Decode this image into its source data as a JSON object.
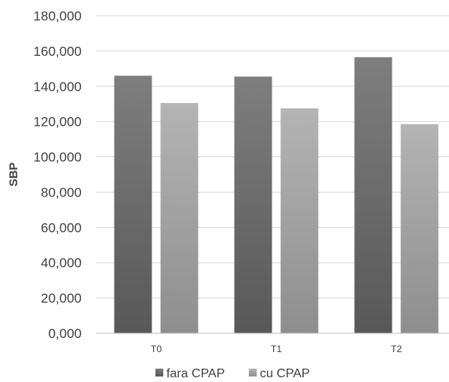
{
  "chart_data": {
    "type": "bar",
    "categories": [
      "T0",
      "T1",
      "T2"
    ],
    "series": [
      {
        "name": "fara CPAP",
        "values": [
          146000,
          145500,
          156500
        ],
        "color": "#6b6b6b"
      },
      {
        "name": "cu CPAP",
        "values": [
          130500,
          127500,
          118500
        ],
        "color": "#a3a3a3"
      }
    ],
    "ylabel": "SBP",
    "xlabel": "",
    "ylim": [
      0,
      180000
    ],
    "ytick_step": 20000,
    "yticks": [
      "0,000",
      "20,000",
      "40,000",
      "60,000",
      "80,000",
      "100,000",
      "120,000",
      "140,000",
      "160,000",
      "180,000"
    ],
    "grid": true,
    "legend": "bottom"
  }
}
